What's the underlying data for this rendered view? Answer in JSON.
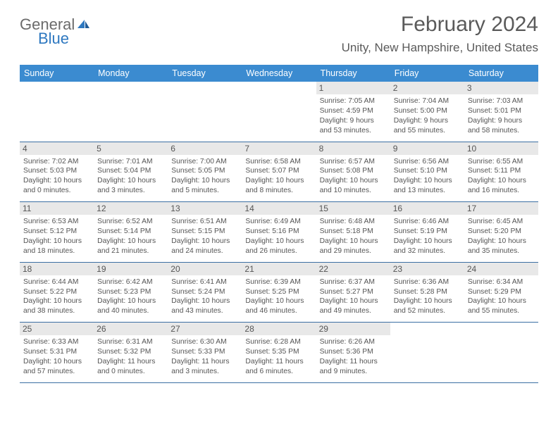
{
  "logo": {
    "text1": "General",
    "text2": "Blue"
  },
  "title": "February 2024",
  "location": "Unity, New Hampshire, United States",
  "colors": {
    "header_bg": "#3b8bd0",
    "header_text": "#ffffff",
    "row_border": "#3b6fa3",
    "daynum_bg": "#e8e8e8",
    "text": "#555555",
    "logo_gray": "#6b6b6b",
    "logo_blue": "#2e78c0"
  },
  "weekdays": [
    "Sunday",
    "Monday",
    "Tuesday",
    "Wednesday",
    "Thursday",
    "Friday",
    "Saturday"
  ],
  "weeks": [
    [
      null,
      null,
      null,
      null,
      {
        "n": "1",
        "sunrise": "7:05 AM",
        "sunset": "4:59 PM",
        "dl1": "Daylight: 9 hours",
        "dl2": "and 53 minutes."
      },
      {
        "n": "2",
        "sunrise": "7:04 AM",
        "sunset": "5:00 PM",
        "dl1": "Daylight: 9 hours",
        "dl2": "and 55 minutes."
      },
      {
        "n": "3",
        "sunrise": "7:03 AM",
        "sunset": "5:01 PM",
        "dl1": "Daylight: 9 hours",
        "dl2": "and 58 minutes."
      }
    ],
    [
      {
        "n": "4",
        "sunrise": "7:02 AM",
        "sunset": "5:03 PM",
        "dl1": "Daylight: 10 hours",
        "dl2": "and 0 minutes."
      },
      {
        "n": "5",
        "sunrise": "7:01 AM",
        "sunset": "5:04 PM",
        "dl1": "Daylight: 10 hours",
        "dl2": "and 3 minutes."
      },
      {
        "n": "6",
        "sunrise": "7:00 AM",
        "sunset": "5:05 PM",
        "dl1": "Daylight: 10 hours",
        "dl2": "and 5 minutes."
      },
      {
        "n": "7",
        "sunrise": "6:58 AM",
        "sunset": "5:07 PM",
        "dl1": "Daylight: 10 hours",
        "dl2": "and 8 minutes."
      },
      {
        "n": "8",
        "sunrise": "6:57 AM",
        "sunset": "5:08 PM",
        "dl1": "Daylight: 10 hours",
        "dl2": "and 10 minutes."
      },
      {
        "n": "9",
        "sunrise": "6:56 AM",
        "sunset": "5:10 PM",
        "dl1": "Daylight: 10 hours",
        "dl2": "and 13 minutes."
      },
      {
        "n": "10",
        "sunrise": "6:55 AM",
        "sunset": "5:11 PM",
        "dl1": "Daylight: 10 hours",
        "dl2": "and 16 minutes."
      }
    ],
    [
      {
        "n": "11",
        "sunrise": "6:53 AM",
        "sunset": "5:12 PM",
        "dl1": "Daylight: 10 hours",
        "dl2": "and 18 minutes."
      },
      {
        "n": "12",
        "sunrise": "6:52 AM",
        "sunset": "5:14 PM",
        "dl1": "Daylight: 10 hours",
        "dl2": "and 21 minutes."
      },
      {
        "n": "13",
        "sunrise": "6:51 AM",
        "sunset": "5:15 PM",
        "dl1": "Daylight: 10 hours",
        "dl2": "and 24 minutes."
      },
      {
        "n": "14",
        "sunrise": "6:49 AM",
        "sunset": "5:16 PM",
        "dl1": "Daylight: 10 hours",
        "dl2": "and 26 minutes."
      },
      {
        "n": "15",
        "sunrise": "6:48 AM",
        "sunset": "5:18 PM",
        "dl1": "Daylight: 10 hours",
        "dl2": "and 29 minutes."
      },
      {
        "n": "16",
        "sunrise": "6:46 AM",
        "sunset": "5:19 PM",
        "dl1": "Daylight: 10 hours",
        "dl2": "and 32 minutes."
      },
      {
        "n": "17",
        "sunrise": "6:45 AM",
        "sunset": "5:20 PM",
        "dl1": "Daylight: 10 hours",
        "dl2": "and 35 minutes."
      }
    ],
    [
      {
        "n": "18",
        "sunrise": "6:44 AM",
        "sunset": "5:22 PM",
        "dl1": "Daylight: 10 hours",
        "dl2": "and 38 minutes."
      },
      {
        "n": "19",
        "sunrise": "6:42 AM",
        "sunset": "5:23 PM",
        "dl1": "Daylight: 10 hours",
        "dl2": "and 40 minutes."
      },
      {
        "n": "20",
        "sunrise": "6:41 AM",
        "sunset": "5:24 PM",
        "dl1": "Daylight: 10 hours",
        "dl2": "and 43 minutes."
      },
      {
        "n": "21",
        "sunrise": "6:39 AM",
        "sunset": "5:25 PM",
        "dl1": "Daylight: 10 hours",
        "dl2": "and 46 minutes."
      },
      {
        "n": "22",
        "sunrise": "6:37 AM",
        "sunset": "5:27 PM",
        "dl1": "Daylight: 10 hours",
        "dl2": "and 49 minutes."
      },
      {
        "n": "23",
        "sunrise": "6:36 AM",
        "sunset": "5:28 PM",
        "dl1": "Daylight: 10 hours",
        "dl2": "and 52 minutes."
      },
      {
        "n": "24",
        "sunrise": "6:34 AM",
        "sunset": "5:29 PM",
        "dl1": "Daylight: 10 hours",
        "dl2": "and 55 minutes."
      }
    ],
    [
      {
        "n": "25",
        "sunrise": "6:33 AM",
        "sunset": "5:31 PM",
        "dl1": "Daylight: 10 hours",
        "dl2": "and 57 minutes."
      },
      {
        "n": "26",
        "sunrise": "6:31 AM",
        "sunset": "5:32 PM",
        "dl1": "Daylight: 11 hours",
        "dl2": "and 0 minutes."
      },
      {
        "n": "27",
        "sunrise": "6:30 AM",
        "sunset": "5:33 PM",
        "dl1": "Daylight: 11 hours",
        "dl2": "and 3 minutes."
      },
      {
        "n": "28",
        "sunrise": "6:28 AM",
        "sunset": "5:35 PM",
        "dl1": "Daylight: 11 hours",
        "dl2": "and 6 minutes."
      },
      {
        "n": "29",
        "sunrise": "6:26 AM",
        "sunset": "5:36 PM",
        "dl1": "Daylight: 11 hours",
        "dl2": "and 9 minutes."
      },
      null,
      null
    ]
  ],
  "labels": {
    "sunrise": "Sunrise: ",
    "sunset": "Sunset: "
  }
}
